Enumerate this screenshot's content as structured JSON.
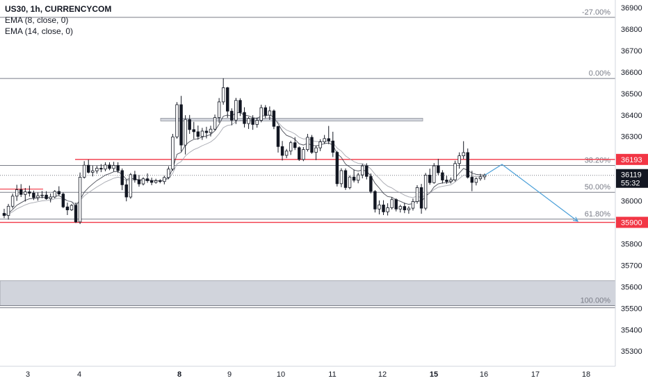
{
  "chart_data": {
    "type": "candlestick",
    "symbol_label": "US30, 1h, CURRENCYCOM",
    "indicators": [
      {
        "label": "EMA (8, close, 0)",
        "color": "#2a2e39"
      },
      {
        "label": "EMA (14, close, 0)",
        "color": "#9598a1"
      }
    ],
    "y_axis": {
      "position": "right",
      "ylim": [
        35250,
        36950
      ],
      "ticks": [
        35300,
        35400,
        35500,
        35600,
        35700,
        35800,
        35900,
        36000,
        36100,
        36200,
        36300,
        36400,
        36500,
        36600,
        36700,
        36800,
        36900
      ],
      "tick_labels": [
        "35300",
        "35400",
        "35500",
        "35600",
        "35700",
        "35800",
        "35900",
        "36000",
        "36100",
        "36200",
        "36300",
        "36400",
        "36500",
        "36600",
        "36700",
        "36800",
        "36900"
      ]
    },
    "x_axis": {
      "ticks": [
        {
          "label": "3",
          "bold": false
        },
        {
          "label": "4",
          "bold": false
        },
        {
          "label": "8",
          "bold": true
        },
        {
          "label": "9",
          "bold": false
        },
        {
          "label": "10",
          "bold": false
        },
        {
          "label": "11",
          "bold": false
        },
        {
          "label": "12",
          "bold": false
        },
        {
          "label": "15",
          "bold": true
        },
        {
          "label": "16",
          "bold": false
        },
        {
          "label": "17",
          "bold": false
        },
        {
          "label": "18",
          "bold": false
        }
      ]
    },
    "fib_levels": [
      {
        "label": "-27.00%",
        "price": 36855
      },
      {
        "label": "0.00%",
        "price": 36570
      },
      {
        "label": "38.20%",
        "price": 36165
      },
      {
        "label": "50.00%",
        "price": 36040
      },
      {
        "label": "61.80%",
        "price": 35915
      },
      {
        "label": "100.00%",
        "price": 35512
      }
    ],
    "horizontal_levels": [
      {
        "price": 36193,
        "label": "36193",
        "color": "#f23645"
      },
      {
        "price": 35900,
        "label": "35900",
        "color": "#f23645"
      }
    ],
    "current_price": {
      "value": "36119",
      "countdown": "55:32",
      "price": 36119
    },
    "zones": [
      {
        "from": 35512,
        "to": 35628,
        "color": "#d1d4dc"
      },
      {
        "from": 36377,
        "to": 36385,
        "color": "#d1d4dc"
      }
    ],
    "projection": {
      "color": "#4a9fd8",
      "points": [
        [
          36119,
          "15"
        ],
        [
          36170,
          "16"
        ],
        [
          35905,
          "18"
        ]
      ]
    },
    "candles": [
      [
        35942,
        35963,
        35920,
        35932
      ],
      [
        35932,
        35986,
        35913,
        35975
      ],
      [
        35975,
        36034,
        35965,
        36022
      ],
      [
        36022,
        36075,
        36000,
        36052
      ],
      [
        36052,
        36078,
        36018,
        36030
      ],
      [
        36030,
        36060,
        35997,
        36042
      ],
      [
        36042,
        36071,
        36020,
        36036
      ],
      [
        36036,
        36048,
        36004,
        36015
      ],
      [
        36015,
        36039,
        36001,
        36024
      ],
      [
        36024,
        36046,
        36012,
        36027
      ],
      [
        36027,
        36045,
        36005,
        36010
      ],
      [
        36010,
        36034,
        35993,
        36018
      ],
      [
        36018,
        36050,
        36012,
        36044
      ],
      [
        36044,
        36068,
        36026,
        36032
      ],
      [
        36032,
        36039,
        35966,
        35972
      ],
      [
        35972,
        35992,
        35934,
        35958
      ],
      [
        35958,
        35985,
        35953,
        35979
      ],
      [
        35979,
        35992,
        35897,
        35902
      ],
      [
        35902,
        36132,
        35892,
        36110
      ],
      [
        36110,
        36185,
        36104,
        36166
      ],
      [
        36166,
        36192,
        36128,
        36133
      ],
      [
        36133,
        36164,
        36114,
        36140
      ],
      [
        36140,
        36163,
        36127,
        36152
      ],
      [
        36152,
        36171,
        36134,
        36148
      ],
      [
        36148,
        36180,
        36138,
        36167
      ],
      [
        36167,
        36180,
        36143,
        36151
      ],
      [
        36151,
        36182,
        36137,
        36165
      ],
      [
        36165,
        36180,
        36130,
        36141
      ],
      [
        36141,
        36151,
        36050,
        36075
      ],
      [
        36075,
        36098,
        35998,
        36018
      ],
      [
        36018,
        36130,
        36010,
        36122
      ],
      [
        36122,
        36140,
        36085,
        36098
      ],
      [
        36098,
        36120,
        36066,
        36079
      ],
      [
        36079,
        36110,
        36072,
        36103
      ],
      [
        36103,
        36128,
        36084,
        36094
      ],
      [
        36094,
        36108,
        36073,
        36086
      ],
      [
        36086,
        36103,
        36080,
        36094
      ],
      [
        36094,
        36101,
        36082,
        36090
      ],
      [
        36090,
        36117,
        36077,
        36109
      ],
      [
        36109,
        36161,
        36101,
        36148
      ],
      [
        36148,
        36312,
        36140,
        36298
      ],
      [
        36298,
        36460,
        36290,
        36448
      ],
      [
        36448,
        36489,
        36230,
        36260
      ],
      [
        36260,
        36399,
        36216,
        36379
      ],
      [
        36379,
        36400,
        36312,
        36332
      ],
      [
        36332,
        36368,
        36289,
        36322
      ],
      [
        36322,
        36351,
        36285,
        36300
      ],
      [
        36300,
        36340,
        36284,
        36325
      ],
      [
        36325,
        36345,
        36291,
        36318
      ],
      [
        36318,
        36350,
        36300,
        36334
      ],
      [
        36334,
        36402,
        36328,
        36388
      ],
      [
        36388,
        36479,
        36364,
        36461
      ],
      [
        36461,
        36571,
        36448,
        36527
      ],
      [
        36527,
        36531,
        36387,
        36418
      ],
      [
        36418,
        36431,
        36352,
        36376
      ],
      [
        36376,
        36480,
        36358,
        36468
      ],
      [
        36468,
        36478,
        36395,
        36412
      ],
      [
        36412,
        36436,
        36342,
        36360
      ],
      [
        36360,
        36391,
        36335,
        36384
      ],
      [
        36384,
        36399,
        36331,
        36356
      ],
      [
        36356,
        36388,
        36341,
        36375
      ],
      [
        36375,
        36448,
        36366,
        36434
      ],
      [
        36434,
        36446,
        36385,
        36399
      ],
      [
        36399,
        36440,
        36377,
        36419
      ],
      [
        36419,
        36426,
        36334,
        36347
      ],
      [
        36347,
        36349,
        36225,
        36253
      ],
      [
        36253,
        36279,
        36188,
        36212
      ],
      [
        36212,
        36242,
        36199,
        36232
      ],
      [
        36232,
        36280,
        36214,
        36271
      ],
      [
        36271,
        36297,
        36237,
        36248
      ],
      [
        36248,
        36254,
        36186,
        36193
      ],
      [
        36193,
        36251,
        36185,
        36239
      ],
      [
        36239,
        36312,
        36230,
        36296
      ],
      [
        36296,
        36307,
        36219,
        36226
      ],
      [
        36226,
        36258,
        36190,
        36247
      ],
      [
        36247,
        36287,
        36232,
        36275
      ],
      [
        36275,
        36307,
        36265,
        36290
      ],
      [
        36290,
        36349,
        36264,
        36279
      ],
      [
        36279,
        36322,
        36204,
        36226
      ],
      [
        36226,
        36233,
        36067,
        36080
      ],
      [
        36080,
        36152,
        36064,
        36141
      ],
      [
        36141,
        36151,
        36051,
        36062
      ],
      [
        36062,
        36118,
        36054,
        36111
      ],
      [
        36111,
        36146,
        36086,
        36096
      ],
      [
        36096,
        36131,
        36082,
        36121
      ],
      [
        36121,
        36172,
        36105,
        36163
      ],
      [
        36163,
        36175,
        36100,
        36114
      ],
      [
        36114,
        36128,
        36035,
        36044
      ],
      [
        36044,
        36050,
        35946,
        35962
      ],
      [
        35962,
        36002,
        35937,
        35981
      ],
      [
        35981,
        36003,
        35934,
        35949
      ],
      [
        35949,
        35989,
        35932,
        35968
      ],
      [
        35968,
        36017,
        35960,
        36006
      ],
      [
        36006,
        36012,
        35951,
        35962
      ],
      [
        35962,
        35982,
        35946,
        35974
      ],
      [
        35974,
        35991,
        35943,
        35958
      ],
      [
        35958,
        35975,
        35940,
        35966
      ],
      [
        35966,
        36011,
        35955,
        35997
      ],
      [
        35997,
        36073,
        35987,
        36062
      ],
      [
        36062,
        36079,
        35940,
        35966
      ],
      [
        35966,
        36130,
        35956,
        36120
      ],
      [
        36120,
        36150,
        36075,
        36085
      ],
      [
        36085,
        36176,
        36080,
        36163
      ],
      [
        36163,
        36196,
        36120,
        36131
      ],
      [
        36131,
        36143,
        36081,
        36097
      ],
      [
        36097,
        36117,
        36080,
        36090
      ],
      [
        36090,
        36109,
        36081,
        36098
      ],
      [
        36098,
        36187,
        36090,
        36174
      ],
      [
        36174,
        36226,
        36150,
        36210
      ],
      [
        36210,
        36278,
        36195,
        36225
      ],
      [
        36225,
        36244,
        36104,
        36110
      ],
      [
        36110,
        36140,
        36045,
        36086
      ],
      [
        36086,
        36110,
        36072,
        36103
      ],
      [
        36103,
        36126,
        36094,
        36112
      ],
      [
        36112,
        36127,
        36098,
        36119
      ]
    ]
  }
}
